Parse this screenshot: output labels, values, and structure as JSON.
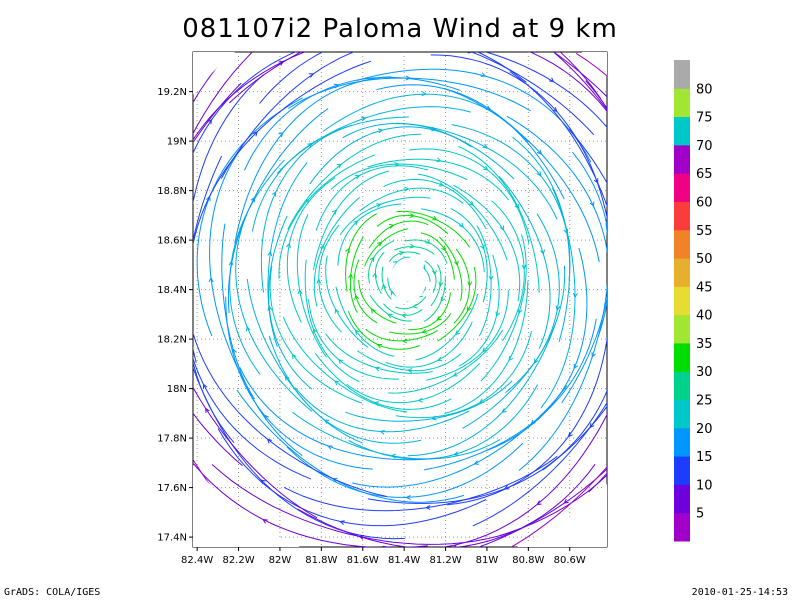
{
  "title": "081107i2 Paloma Wind at 9 km",
  "footer_left": "GrADS: COLA/IGES",
  "footer_right": "2010-01-25-14:53",
  "chart_data": {
    "type": "streamline",
    "lon_range": [
      -82.42,
      -80.42
    ],
    "lat_range": [
      17.36,
      19.36
    ],
    "center": {
      "lon": -81.38,
      "lat": 18.44
    },
    "x_ticks": [
      "82.4W",
      "82.2W",
      "82W",
      "81.8W",
      "81.6W",
      "81.4W",
      "81.2W",
      "81W",
      "80.8W",
      "80.6W"
    ],
    "x_tick_values": [
      -82.4,
      -82.2,
      -82.0,
      -81.8,
      -81.6,
      -81.4,
      -81.2,
      -81.0,
      -80.8,
      -80.6
    ],
    "y_ticks": [
      "17.4N",
      "17.6N",
      "17.8N",
      "18N",
      "18.2N",
      "18.4N",
      "18.6N",
      "18.8N",
      "19N",
      "19.2N"
    ],
    "y_tick_values": [
      17.4,
      17.6,
      17.8,
      18.0,
      18.2,
      18.4,
      18.6,
      18.8,
      19.0,
      19.2
    ],
    "grid": true,
    "colorbar": {
      "labels": [
        "5",
        "10",
        "15",
        "20",
        "25",
        "30",
        "35",
        "40",
        "45",
        "50",
        "55",
        "60",
        "65",
        "70",
        "75",
        "80"
      ],
      "colors": [
        "#a000c8",
        "#6e00dc",
        "#1e3cff",
        "#0096ff",
        "#00c8c8",
        "#00d28c",
        "#00dc00",
        "#a0e632",
        "#e6dc32",
        "#e6af2d",
        "#f08228",
        "#fa3c3c",
        "#f00082",
        "#a000c8",
        "#00c8c8",
        "#a0e632",
        "#aaaaaa"
      ]
    }
  }
}
